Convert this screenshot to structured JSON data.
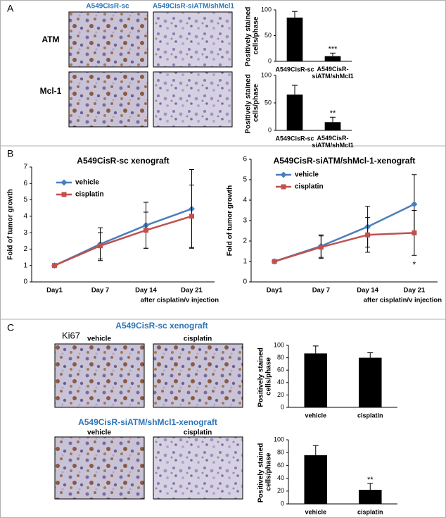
{
  "panel_labels": [
    "A",
    "B",
    "C"
  ],
  "panel_a": {
    "column_headers": [
      "A549CisR-sc",
      "A549CisR-siATM/shMcl1"
    ],
    "row_labels": [
      "ATM",
      "Mcl-1"
    ]
  },
  "panel_c": {
    "stain": "Ki67",
    "groups": [
      {
        "title": "A549CisR-sc xenograft",
        "columns": [
          "vehicle",
          "cisplatin"
        ]
      },
      {
        "title": "A549CisR-siATM/shMcl1-xenograft",
        "columns": [
          "vehicle",
          "cisplatin"
        ]
      }
    ]
  },
  "chart_data": [
    {
      "type": "bar",
      "ylabel": "Positively stained cells/phase",
      "categories": [
        "A549CisR-sc",
        "A549CisR-siATM/shMcl1"
      ],
      "values": [
        85,
        10
      ],
      "errors": [
        12,
        6
      ],
      "annotations": [
        null,
        "***"
      ],
      "color": "#000000",
      "ylim": [
        0,
        100
      ],
      "yticks": [
        0,
        50,
        100
      ]
    },
    {
      "type": "bar",
      "ylabel": "Positively stained cells/phase",
      "categories": [
        "A549CisR-sc",
        "A549CisR-siATM/shMcl1"
      ],
      "values": [
        65,
        15
      ],
      "errors": [
        17,
        9
      ],
      "annotations": [
        null,
        "**"
      ],
      "color": "#000000",
      "ylim": [
        0,
        100
      ],
      "yticks": [
        0,
        50,
        100
      ]
    },
    {
      "type": "line",
      "title": "A549CisR-sc xenograft",
      "ylabel": "Fold of tumor growth",
      "xlabel": "after cisplatin/v injection",
      "categories": [
        "Day1",
        "Day 7",
        "Day 14",
        "Day 21"
      ],
      "legend": "upper left",
      "ylim": [
        0,
        7
      ],
      "yticks": [
        0,
        1,
        2,
        3,
        4,
        5,
        6,
        7
      ],
      "series": [
        {
          "name": "vehicle",
          "color": "#4a7ebb",
          "marker": "diamond",
          "values": [
            1,
            2.3,
            3.45,
            4.45
          ],
          "errors": [
            0,
            1,
            1.4,
            2.4
          ]
        },
        {
          "name": "cisplatin",
          "color": "#c0504d",
          "marker": "square",
          "values": [
            1,
            2.2,
            3.15,
            4.0
          ],
          "errors": [
            0,
            0.8,
            1.1,
            1.9
          ]
        }
      ]
    },
    {
      "type": "line",
      "title": "A549CisR-siATM/shMcl-1-xenograft",
      "ylabel": "Fold of tumor growth",
      "xlabel": "after cisplatin/v injection",
      "categories": [
        "Day1",
        "Day 7",
        "Day 14",
        "Day 21"
      ],
      "legend": "upper left",
      "ylim": [
        0,
        6
      ],
      "yticks": [
        0,
        1,
        2,
        3,
        4,
        5,
        6
      ],
      "series": [
        {
          "name": "vehicle",
          "color": "#4a7ebb",
          "marker": "diamond",
          "values": [
            1,
            1.75,
            2.7,
            3.8
          ],
          "errors": [
            0,
            0.55,
            1,
            1.45
          ]
        },
        {
          "name": "cisplatin",
          "color": "#c0504d",
          "marker": "square",
          "values": [
            1,
            1.7,
            2.3,
            2.4
          ],
          "errors": [
            0,
            0.55,
            0.85,
            1.1
          ],
          "annotations": [
            null,
            null,
            null,
            "*"
          ]
        }
      ]
    },
    {
      "type": "bar",
      "ylabel": "Positively stained cells/phase",
      "categories": [
        "vehicle",
        "cisplatin"
      ],
      "values": [
        87,
        80
      ],
      "errors": [
        12,
        8
      ],
      "annotations": [
        null,
        null
      ],
      "color": "#000000",
      "ylim": [
        0,
        100
      ],
      "yticks": [
        0,
        20,
        40,
        60,
        80,
        100
      ]
    },
    {
      "type": "bar",
      "ylabel": "Positively stained cells/phase",
      "categories": [
        "vehicle",
        "cisplatin"
      ],
      "values": [
        76,
        22
      ],
      "errors": [
        15,
        10
      ],
      "annotations": [
        null,
        "**"
      ],
      "color": "#000000",
      "ylim": [
        0,
        100
      ],
      "yticks": [
        0,
        20,
        40,
        60,
        80,
        100
      ]
    }
  ]
}
